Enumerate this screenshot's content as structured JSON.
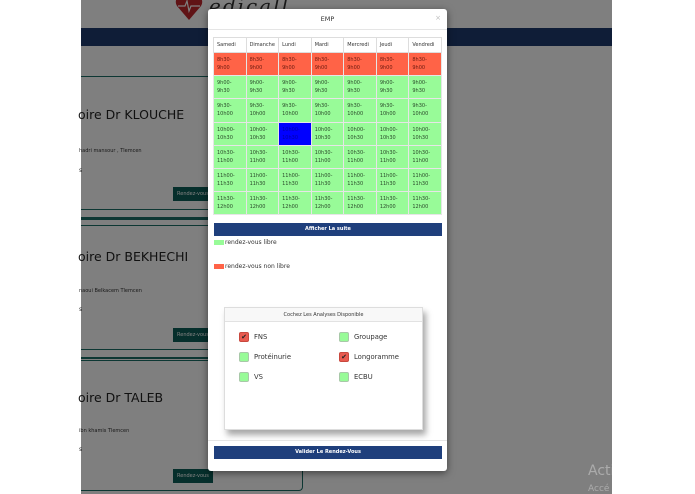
{
  "background": {
    "logo_text": "edicall",
    "cards": [
      {
        "title": "oire Dr KLOUCHE",
        "address": "hadri mansour , Tlemcen",
        "misc": "s",
        "button": "Rendez-vous"
      },
      {
        "title": "oire Dr BEKHECHI",
        "address": "naoui Belkacem Tlemcen",
        "misc": "s",
        "button": "Rendez-vous"
      },
      {
        "title": "oire Dr TALEB",
        "address": "ibn khamis Tlemcen",
        "misc": "s",
        "button": "Rendez-vous"
      }
    ],
    "watermark_line1": "Acti",
    "watermark_line2": "Accé"
  },
  "modal": {
    "title": "EMP",
    "close": "×",
    "schedule": {
      "days": [
        "Samedi",
        "Dimanche",
        "Lundi",
        "Mardi",
        "Mercredi",
        "Jeudi",
        "Vendredi"
      ],
      "slots": [
        {
          "label": "8h30-9h00",
          "l1": "8h30-",
          "l2": "9h00",
          "status": [
            "busy",
            "busy",
            "busy",
            "busy",
            "busy",
            "busy",
            "busy"
          ]
        },
        {
          "label": "9h00-9h30",
          "l1": "9h00-",
          "l2": "9h30",
          "status": [
            "free",
            "free",
            "free",
            "free",
            "free",
            "free",
            "free"
          ]
        },
        {
          "label": "9h30-10h00",
          "l1": "9h30-",
          "l2": "10h00",
          "status": [
            "free",
            "free",
            "free",
            "free",
            "free",
            "free",
            "free"
          ]
        },
        {
          "label": "10h00-10h30",
          "l1": "10h00-",
          "l2": "10h30",
          "status": [
            "free",
            "free",
            "selected",
            "free",
            "free",
            "free",
            "free"
          ]
        },
        {
          "label": "10h30-11h00",
          "l1": "10h30-",
          "l2": "11h00",
          "status": [
            "free",
            "free",
            "free",
            "free",
            "free",
            "free",
            "free"
          ]
        },
        {
          "label": "11h00-11h30",
          "l1": "11h00-",
          "l2": "11h30",
          "status": [
            "free",
            "free",
            "free",
            "free",
            "free",
            "free",
            "free"
          ]
        },
        {
          "label": "11h30-12h00",
          "l1": "11h30-",
          "l2": "12h00",
          "status": [
            "free",
            "free",
            "free",
            "free",
            "free",
            "free",
            "free"
          ]
        }
      ]
    },
    "show_more_button": "Afficher La suite",
    "legend": {
      "free_label": "rendez-vous libre",
      "busy_label": "rendez-vous non libre",
      "free_color": "#98fb98",
      "busy_color": "#ff6347"
    },
    "analyses": {
      "heading": "Cochez Les Analyses Disponible",
      "items": [
        {
          "label": "FNS",
          "checked": true
        },
        {
          "label": "Groupage",
          "checked": false
        },
        {
          "label": "Protéinurie",
          "checked": false
        },
        {
          "label": "Longoramme",
          "checked": true
        },
        {
          "label": "VS",
          "checked": false
        },
        {
          "label": "ECBU",
          "checked": false
        }
      ]
    },
    "validate_button": "Valider Le Rendez-Vous"
  },
  "colors": {
    "primary": "#1f3f7c",
    "nav": "#1f3a6e",
    "free": "#98fb98",
    "busy": "#ff6347",
    "selected": "#0000ff",
    "teal": "#0d5f59"
  }
}
